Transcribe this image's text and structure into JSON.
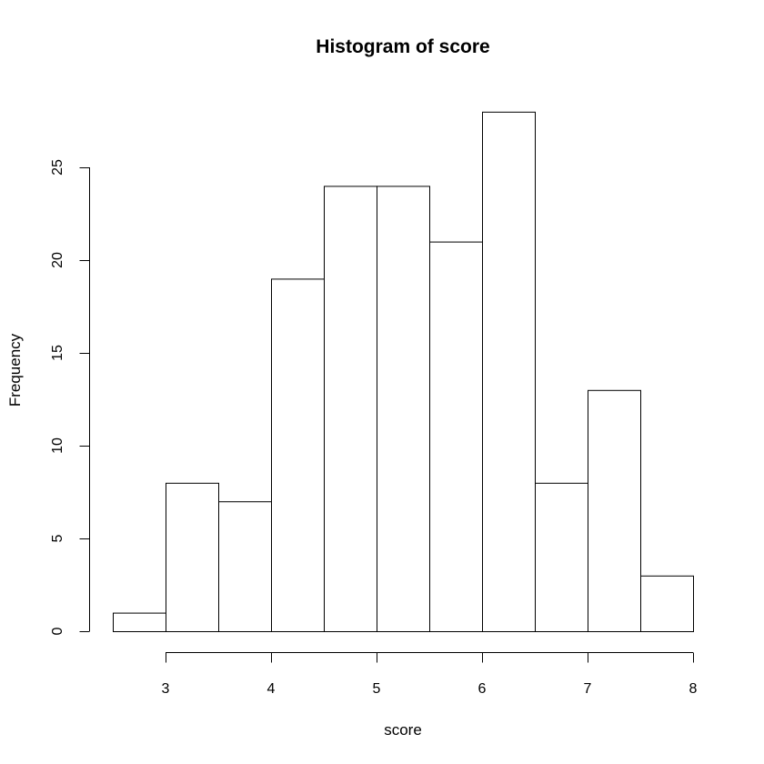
{
  "chart_data": {
    "type": "bar",
    "title": "Histogram of score",
    "xlabel": "score",
    "ylabel": "Frequency",
    "bins": [
      {
        "start": 2.5,
        "end": 3.0,
        "count": 1
      },
      {
        "start": 3.0,
        "end": 3.5,
        "count": 8
      },
      {
        "start": 3.5,
        "end": 4.0,
        "count": 7
      },
      {
        "start": 4.0,
        "end": 4.5,
        "count": 19
      },
      {
        "start": 4.5,
        "end": 5.0,
        "count": 24
      },
      {
        "start": 5.0,
        "end": 5.5,
        "count": 24
      },
      {
        "start": 5.5,
        "end": 6.0,
        "count": 21
      },
      {
        "start": 6.0,
        "end": 6.5,
        "count": 28
      },
      {
        "start": 6.5,
        "end": 7.0,
        "count": 8
      },
      {
        "start": 7.0,
        "end": 7.5,
        "count": 13
      },
      {
        "start": 7.5,
        "end": 8.0,
        "count": 3
      }
    ],
    "xticks": [
      "3",
      "4",
      "5",
      "6",
      "7",
      "8"
    ],
    "yticks": [
      "0",
      "5",
      "10",
      "15",
      "20",
      "25"
    ],
    "xlim": [
      2.5,
      8.0
    ],
    "ylim": [
      0,
      28
    ],
    "grid": false,
    "colors": {
      "bar_fill": "#ffffff",
      "bar_stroke": "#000000"
    }
  }
}
